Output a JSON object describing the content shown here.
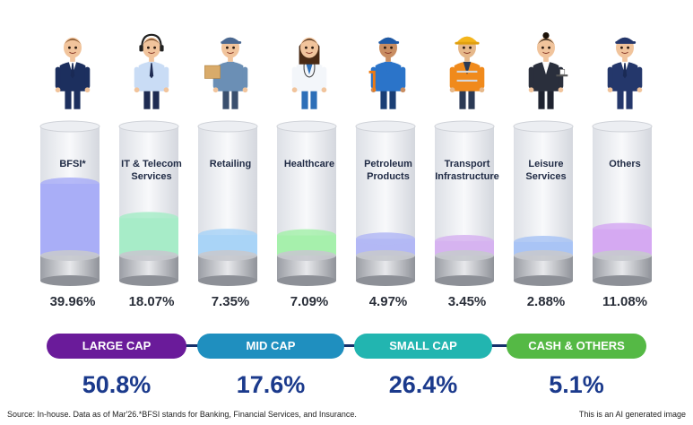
{
  "chart_data": {
    "type": "bar",
    "categories": [
      "BFSI*",
      "IT & Telecom Services",
      "Retailing",
      "Healthcare",
      "Petroleum Products",
      "Transport Infrastructure",
      "Leisure Services",
      "Others"
    ],
    "category_lines": [
      [
        "BFSI*"
      ],
      [
        "IT & Telecom",
        "Services"
      ],
      [
        "Retailing"
      ],
      [
        "Healthcare"
      ],
      [
        "Petroleum",
        "Products"
      ],
      [
        "Transport",
        "Infrastructure"
      ],
      [
        "Leisure",
        "Services"
      ],
      [
        "Others"
      ]
    ],
    "values": [
      39.96,
      18.07,
      7.35,
      7.09,
      4.97,
      3.45,
      2.88,
      11.08
    ],
    "value_labels": [
      "39.96%",
      "18.07%",
      "7.35%",
      "7.09%",
      "4.97%",
      "3.45%",
      "2.88%",
      "11.08%"
    ],
    "fill_colors": [
      "#a9aef7",
      "#a7ecc8",
      "#a9d4f7",
      "#a6f0ac",
      "#b3b8f5",
      "#d6b3f0",
      "#a9c4f5",
      "#d5a9f2"
    ],
    "avatar_icons": [
      "banker-avatar-icon",
      "it-support-avatar-icon",
      "delivery-worker-avatar-icon",
      "doctor-avatar-icon",
      "fuel-attendant-avatar-icon",
      "construction-worker-avatar-icon",
      "hospitality-server-avatar-icon",
      "officer-avatar-icon"
    ]
  },
  "market_caps": [
    {
      "label": "LARGE CAP",
      "value": "50.8%",
      "color": "#6a1b9a"
    },
    {
      "label": "MID CAP",
      "value": "17.6%",
      "color": "#1f8fbf"
    },
    {
      "label": "SMALL CAP",
      "value": "26.4%",
      "color": "#22b5b0"
    },
    {
      "label": "CASH & OTHERS",
      "value": "5.1%",
      "color": "#55b945"
    }
  ],
  "footer": {
    "source": "Source: In-house. Data as of Mar'26.*BFSI stands for Banking, Financial Services, and Insurance.",
    "disclaimer": "This is an AI generated image"
  }
}
